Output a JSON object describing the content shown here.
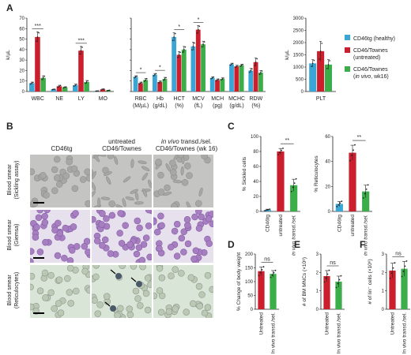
{
  "panel_letters": [
    "A",
    "B",
    "C",
    "D",
    "E",
    "F"
  ],
  "legend": [
    {
      "line1": "CD46tg (healthy)",
      "line2": "",
      "line2_italic": "",
      "line2_end": "",
      "color": "#3aa6d6"
    },
    {
      "line1": "CD46/Townes",
      "line2": "(untreated)",
      "line2_italic": "",
      "line2_end": "",
      "color": "#cc1f2d"
    },
    {
      "line1": "CD46/Townes",
      "line2": "(",
      "line2_italic": "in vivo",
      "line2_end": ", wk16)",
      "color": "#3cae49"
    }
  ],
  "panel_b": {
    "col_headers": [
      {
        "line1": "",
        "line2": "CD46tg",
        "italic": ""
      },
      {
        "line1": "untreated",
        "line2": "CD46/Townes",
        "italic": ""
      },
      {
        "line1": " transd./sel.",
        "line2": "CD46/Townes (wk 16)",
        "italic": "in vivo"
      }
    ],
    "row_labels": [
      {
        "line1": "Blood smear",
        "line2": "(Sickling assay)"
      },
      {
        "line1": "Blood smear",
        "line2": "(Giemsa)"
      },
      {
        "line1": "Blood smear",
        "line2": "(Reticulocytes)"
      }
    ]
  },
  "chart_data": [
    {
      "id": "A1",
      "type": "bar",
      "ylabel": "k/µL",
      "ylim": [
        0,
        70
      ],
      "yticks": [
        "0",
        "10",
        "20",
        "30",
        "40",
        "50",
        "60",
        "70"
      ],
      "categories": [
        "WBC",
        "NE",
        "LY",
        "MO"
      ],
      "series": [
        {
          "name": "CD46tg (healthy)",
          "values": [
            8,
            2,
            6,
            0.5
          ],
          "errors": [
            1,
            0.3,
            1,
            0.1
          ]
        },
        {
          "name": "CD46/Townes (untreated)",
          "values": [
            52,
            5,
            39,
            2
          ],
          "errors": [
            5,
            1,
            4,
            0.5
          ]
        },
        {
          "name": "CD46/Townes (in vivo, wk16)",
          "values": [
            13,
            4,
            9,
            1
          ],
          "errors": [
            2,
            0.5,
            1.5,
            0.3
          ]
        }
      ],
      "significance": [
        {
          "category": "WBC",
          "label": "***"
        },
        {
          "category": "LY",
          "label": "***"
        }
      ]
    },
    {
      "id": "A2",
      "type": "bar",
      "ylim": [
        0,
        70
      ],
      "yticks": [],
      "categories": [
        "RBC\n(M/µL)",
        "Hb\n(g/dL)",
        "HCT\n(%)",
        "MCV\n(fL)",
        "MCH\n(pg)",
        "MCHC\n(g/dL)",
        "RDW\n(%)"
      ],
      "series": [
        {
          "name": "CD46tg (healthy)",
          "values": [
            14,
            16,
            52,
            43,
            13,
            26,
            20
          ],
          "errors": [
            1,
            1.2,
            4,
            4,
            1,
            1,
            2
          ]
        },
        {
          "name": "CD46/Townes (untreated)",
          "values": [
            8,
            9,
            35,
            59,
            11,
            24,
            28
          ],
          "errors": [
            1,
            1,
            3,
            4,
            1,
            1,
            4
          ]
        },
        {
          "name": "CD46/Townes (in vivo, wk16)",
          "values": [
            11,
            12,
            40,
            45,
            12,
            25,
            18
          ],
          "errors": [
            1.5,
            1.5,
            3,
            3,
            1,
            1,
            2
          ]
        }
      ],
      "significance": [
        {
          "category": "RBC\n(M/µL)",
          "label": "*"
        },
        {
          "category": "Hb\n(g/dL)",
          "label": "*"
        },
        {
          "category": "HCT\n(%)",
          "label": "*"
        },
        {
          "category": "MCV\n(fL)",
          "label": "*"
        }
      ]
    },
    {
      "id": "A3",
      "type": "bar",
      "ylabel": "k/µL",
      "ylim": [
        0,
        3000
      ],
      "yticks": [
        "0",
        "500",
        "1000",
        "1500",
        "2000",
        "2500",
        "3000"
      ],
      "categories": [
        "PLT"
      ],
      "series": [
        {
          "name": "CD46tg (healthy)",
          "values": [
            1150
          ],
          "errors": [
            150
          ]
        },
        {
          "name": "CD46/Townes (untreated)",
          "values": [
            1650
          ],
          "errors": [
            400
          ]
        },
        {
          "name": "CD46/Townes (in vivo, wk16)",
          "values": [
            1100
          ],
          "errors": [
            200
          ]
        }
      ]
    },
    {
      "id": "C1",
      "type": "bar",
      "ylabel": "% Sickled cells",
      "ylim": [
        0,
        100
      ],
      "yticks": [
        "0",
        "20",
        "40",
        "60",
        "80",
        "100"
      ],
      "categories": [
        "CD46tg",
        "untreated",
        "in vivo transd./sel."
      ],
      "values": [
        2,
        80,
        35
      ],
      "errors": [
        1,
        4,
        8
      ],
      "significance": [
        {
          "from": "untreated",
          "to": "in vivo transd./sel.",
          "label": "**"
        }
      ]
    },
    {
      "id": "C2",
      "type": "bar",
      "ylabel": "% Reticulocytes",
      "ylim": [
        0,
        60
      ],
      "yticks": [
        "0",
        "20",
        "40",
        "60"
      ],
      "categories": [
        "CD46tg",
        "untreated",
        "in vivo transd./sel."
      ],
      "values": [
        6,
        47,
        16
      ],
      "errors": [
        2,
        6,
        5
      ],
      "significance": [
        {
          "from": "untreated",
          "to": "in vivo transd./sel.",
          "label": "**"
        }
      ]
    },
    {
      "id": "D",
      "type": "bar",
      "ylabel": "% Change of body weight",
      "ylim": [
        0,
        200
      ],
      "yticks": [
        "0",
        "50",
        "100",
        "150",
        "200"
      ],
      "categories": [
        "Untreated",
        "In vivo transd./sel."
      ],
      "values": [
        138,
        128
      ],
      "errors": [
        15,
        12
      ],
      "significance": [
        {
          "from": "Untreated",
          "to": "In vivo transd./sel.",
          "label": "ns"
        }
      ]
    },
    {
      "id": "E",
      "type": "bar",
      "ylabel": "# of BM MNCs (×10⁸)",
      "ylim": [
        0,
        3
      ],
      "yticks": [
        "0",
        "1",
        "2",
        "3"
      ],
      "categories": [
        "Untreated",
        "In vivo transd./sel."
      ],
      "values": [
        1.8,
        1.5
      ],
      "errors": [
        0.3,
        0.3
      ],
      "significance": [
        {
          "from": "Untreated",
          "to": "In vivo transd./sel.",
          "label": "ns"
        }
      ]
    },
    {
      "id": "F",
      "type": "bar",
      "ylabel": "# of lin⁻ cells (×10⁶)",
      "ylim": [
        0,
        3
      ],
      "yticks": [
        "0",
        "1",
        "2",
        "3"
      ],
      "categories": [
        "Untreated",
        "In vivo transd./sel."
      ],
      "values": [
        2.1,
        2.2
      ],
      "errors": [
        0.4,
        0.4
      ],
      "significance": [
        {
          "from": "Untreated",
          "to": "In vivo transd./sel.",
          "label": "ns"
        }
      ]
    }
  ],
  "colors": {
    "healthy": "#3aa6d6",
    "untreated": "#cc1f2d",
    "treated": "#3cae49",
    "sickle_bg": "#c4c4c2",
    "sickle_cell": "#a7a7a5",
    "giemsa_bg": "#e7e1ee",
    "giemsa_cell": "#a77fc1",
    "retic_bg": "#d9e5d6",
    "retic_cell": "#b9c9b3",
    "retic_dark": "#4b5a6a"
  }
}
